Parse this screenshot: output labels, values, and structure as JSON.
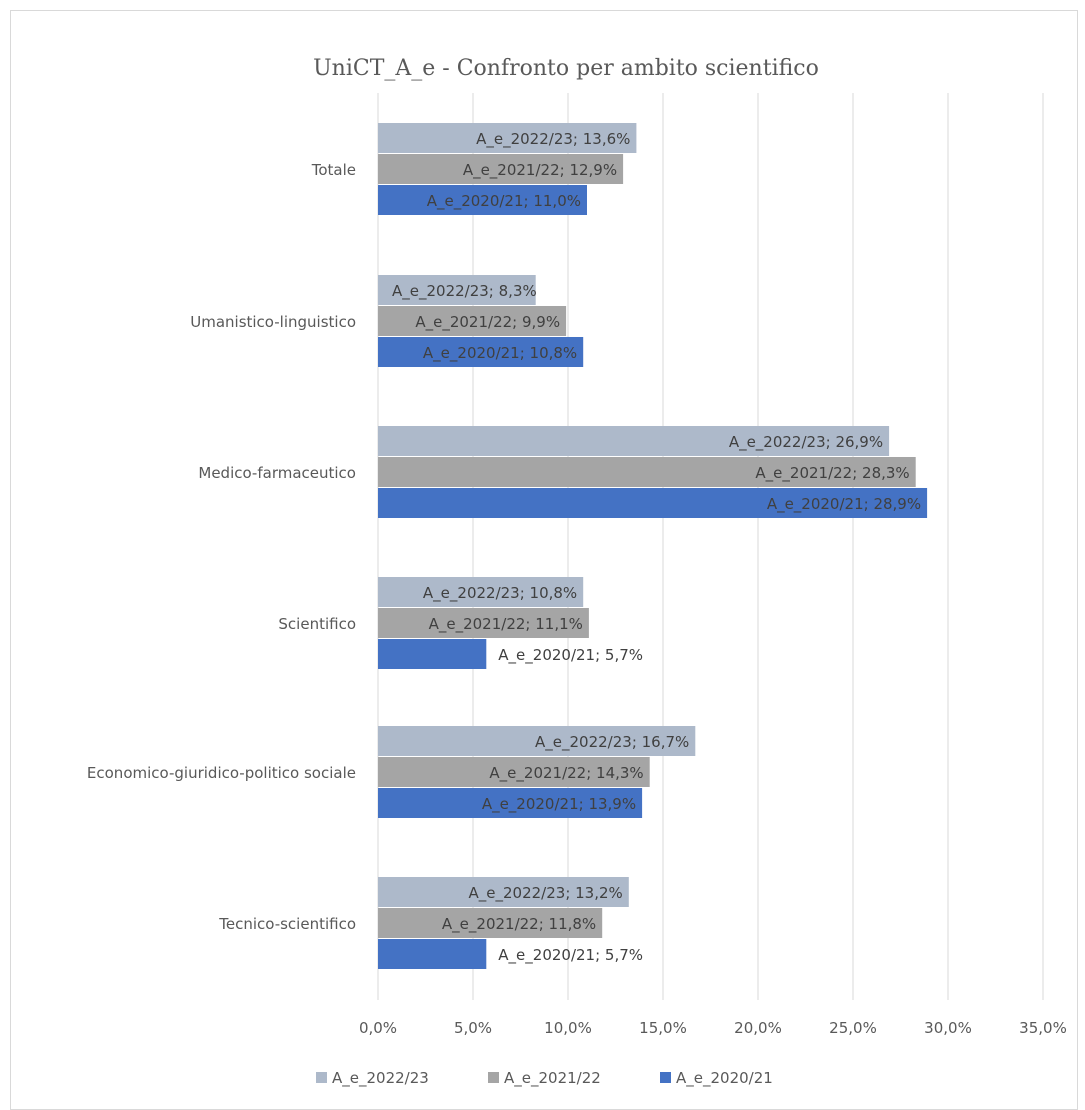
{
  "chart_data": {
    "type": "bar",
    "orientation": "horizontal",
    "title": "UniCT_A_e -  Confronto per ambito scientifico",
    "categories": [
      "Totale",
      "Umanistico-linguistico",
      "Medico-farmaceutico",
      "Scientifico",
      "Economico-giuridico-politico sociale",
      "Tecnico-scientifico"
    ],
    "series": [
      {
        "name": "A_e_2022/23",
        "color": "#adb9ca",
        "values": [
          13.6,
          8.3,
          26.9,
          10.8,
          16.7,
          13.2
        ],
        "labels": [
          "A_e_2022/23;  13,6%",
          "A_e_2022/23;  8,3%",
          "A_e_2022/23;  26,9%",
          "A_e_2022/23;  10,8%",
          "A_e_2022/23;  16,7%",
          "A_e_2022/23;  13,2%"
        ]
      },
      {
        "name": "A_e_2021/22",
        "color": "#a5a5a5",
        "values": [
          12.9,
          9.9,
          28.3,
          11.1,
          14.3,
          11.8
        ],
        "labels": [
          "A_e_2021/22;  12,9%",
          "A_e_2021/22;  9,9%",
          "A_e_2021/22;  28,3%",
          "A_e_2021/22;  11,1%",
          "A_e_2021/22;  14,3%",
          "A_e_2021/22;  11,8%"
        ]
      },
      {
        "name": "A_e_2020/21",
        "color": "#4472c4",
        "values": [
          11.0,
          10.8,
          28.9,
          5.7,
          13.9,
          5.7
        ],
        "labels": [
          "A_e_2020/21;  11,0%",
          "A_e_2020/21;  10,8%",
          "A_e_2020/21;  28,9%",
          "A_e_2020/21;  5,7%",
          "A_e_2020/21;  13,9%",
          "A_e_2020/21;  5,7%"
        ]
      }
    ],
    "xlim": [
      0,
      35
    ],
    "x_ticks": [
      0,
      5,
      10,
      15,
      20,
      25,
      30,
      35
    ],
    "x_tick_labels": [
      "0,0%",
      "5,0%",
      "10,0%",
      "15,0%",
      "20,0%",
      "25,0%",
      "30,0%",
      "35,0%"
    ],
    "grid": true,
    "legend_position": "bottom"
  }
}
